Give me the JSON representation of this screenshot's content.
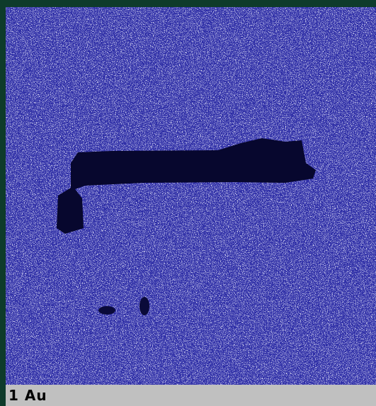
{
  "caption": {
    "label": "1 Au"
  }
}
